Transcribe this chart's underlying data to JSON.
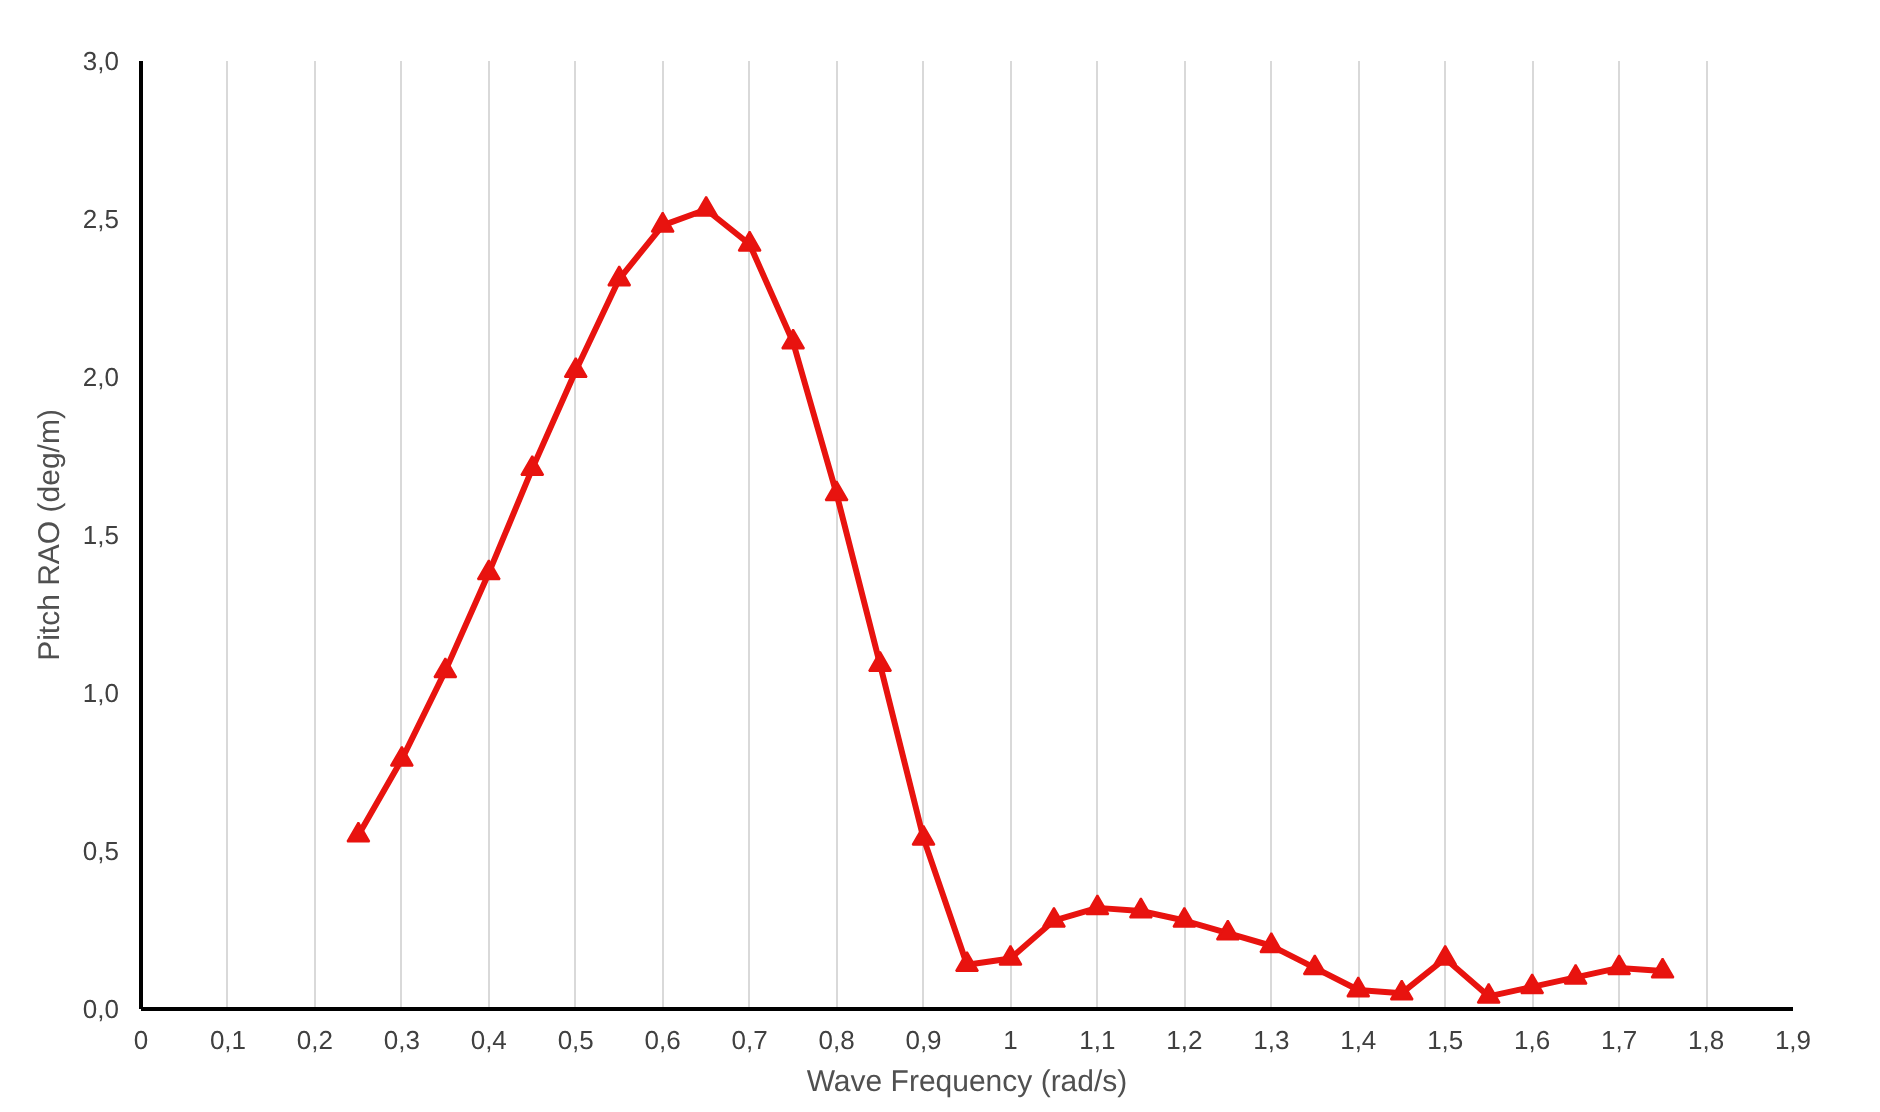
{
  "chart_data": {
    "type": "line",
    "xlabel": "Wave Frequency (rad/s)",
    "ylabel": "Pitch RAO (deg/m)",
    "x": [
      0.25,
      0.3,
      0.35,
      0.4,
      0.45,
      0.5,
      0.55,
      0.6,
      0.65,
      0.7,
      0.75,
      0.8,
      0.85,
      0.9,
      0.95,
      1.0,
      1.05,
      1.1,
      1.15,
      1.2,
      1.25,
      1.3,
      1.35,
      1.4,
      1.45,
      1.5,
      1.55,
      1.6,
      1.65,
      1.7,
      1.75
    ],
    "series": [
      {
        "color": "#e8130f",
        "values": [
          0.55,
          0.79,
          1.07,
          1.38,
          1.71,
          2.02,
          2.31,
          2.48,
          2.53,
          2.42,
          2.11,
          1.63,
          1.09,
          0.54,
          0.14,
          0.16,
          0.28,
          0.32,
          0.31,
          0.28,
          0.24,
          0.2,
          0.13,
          0.06,
          0.05,
          0.16,
          0.04,
          0.07,
          0.1,
          0.13,
          0.12
        ]
      }
    ],
    "xlim": [
      0,
      1.9
    ],
    "xticks": [
      0,
      {
        "value": 0.1,
        "label": "0,1"
      },
      {
        "value": 0.2,
        "label": "0,2"
      },
      {
        "value": 0.3,
        "label": "0,3"
      },
      {
        "value": 0.4,
        "label": "0,4"
      },
      {
        "value": 0.5,
        "label": "0,5"
      },
      {
        "value": 0.6,
        "label": "0,6"
      },
      {
        "value": 0.7,
        "label": "0,7"
      },
      {
        "value": 0.8,
        "label": "0,8"
      },
      {
        "value": 0.9,
        "label": "0,9"
      },
      1,
      {
        "value": 1.1,
        "label": "1,1"
      },
      {
        "value": 1.2,
        "label": "1,2"
      },
      {
        "value": 1.3,
        "label": "1,3"
      },
      {
        "value": 1.4,
        "label": "1,4"
      },
      {
        "value": 1.5,
        "label": "1,5"
      },
      {
        "value": 1.6,
        "label": "1,6"
      },
      {
        "value": 1.7,
        "label": "1,7"
      },
      {
        "value": 1.8,
        "label": "1,8"
      },
      {
        "value": 1.9,
        "label": "1,9"
      }
    ],
    "ylim": [
      0,
      3
    ],
    "yticks": [
      {
        "value": 0,
        "label": "0,0"
      },
      {
        "value": 0.5,
        "label": "0,5"
      },
      {
        "value": 1,
        "label": "1,0"
      },
      {
        "value": 1.5,
        "label": "1,5"
      },
      {
        "value": 2,
        "label": "2,0"
      },
      {
        "value": 2.5,
        "label": "2,5"
      },
      {
        "value": 3,
        "label": "3,0"
      }
    ],
    "grid": "x",
    "marker": "triangle",
    "line_style": "solid"
  }
}
